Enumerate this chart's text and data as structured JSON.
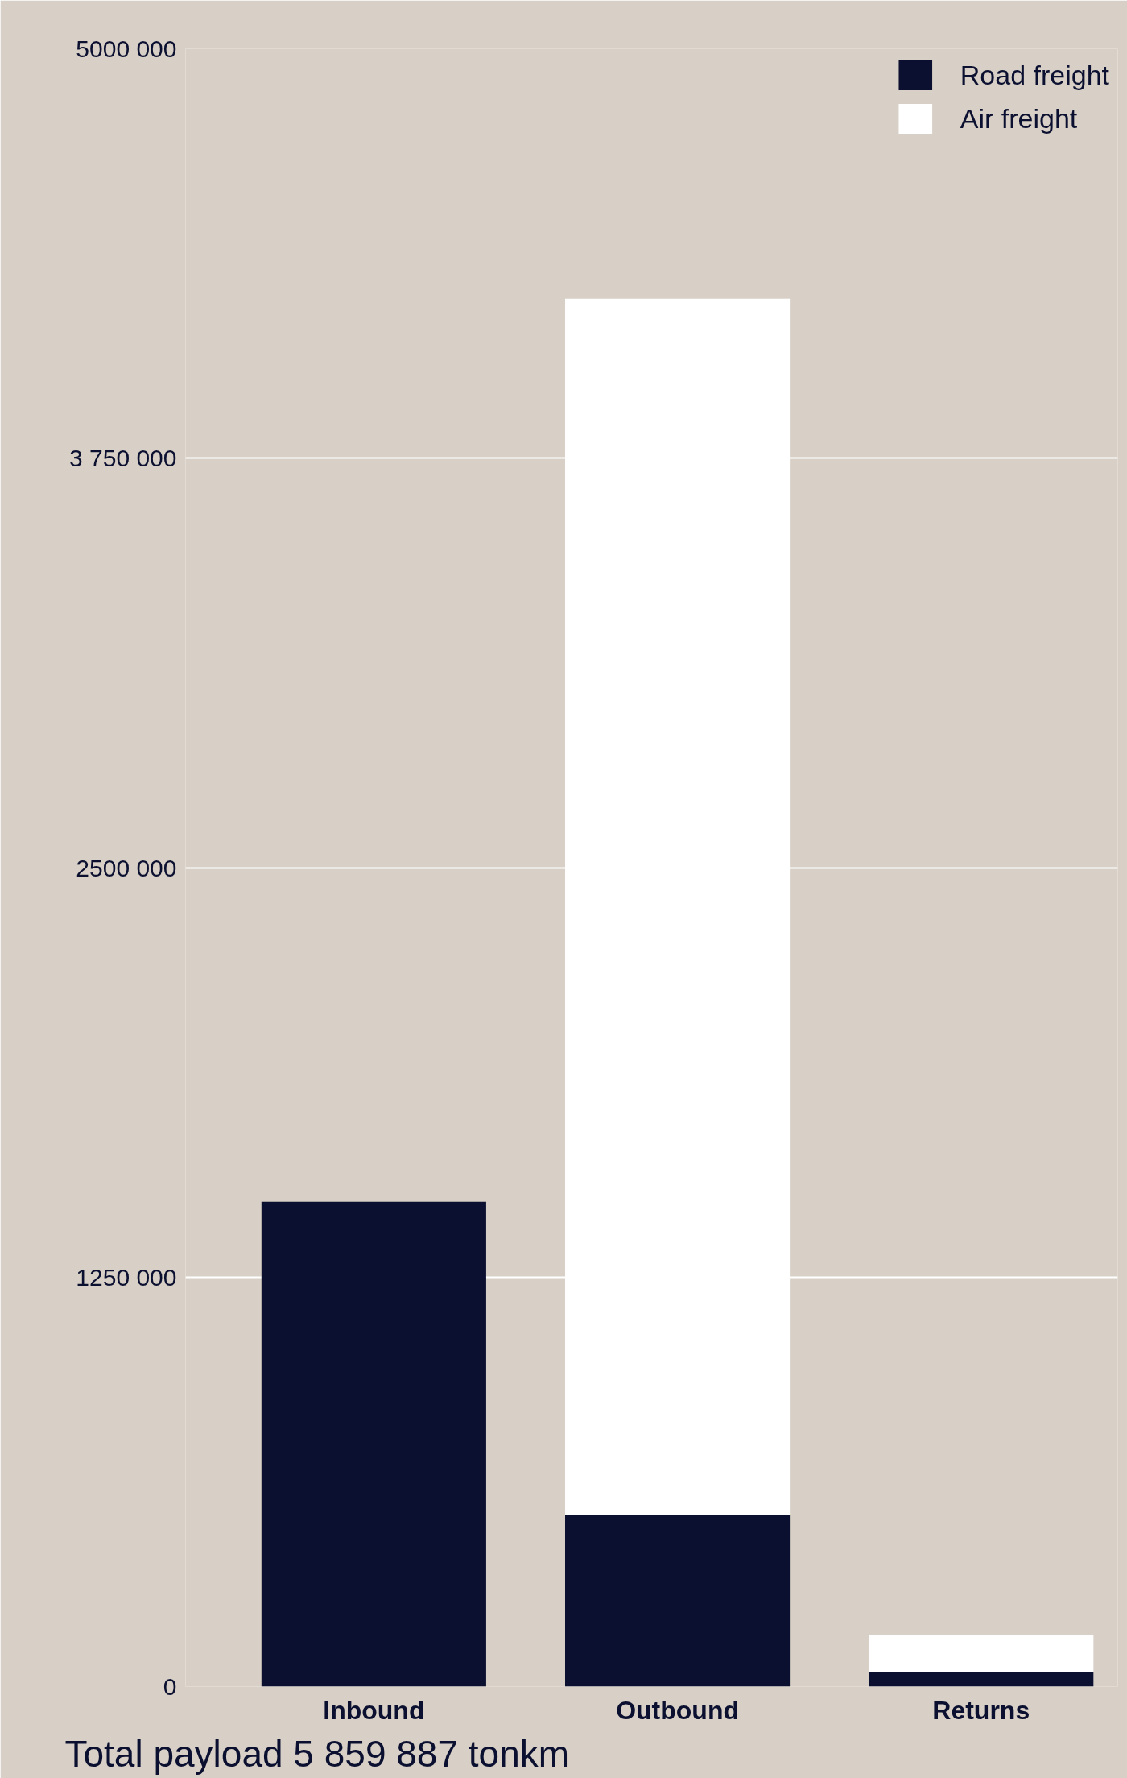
{
  "chart_data": {
    "type": "bar",
    "stacked": true,
    "categories": [
      "Inbound",
      "Outbound",
      "Returns"
    ],
    "series": [
      {
        "name": "Road freight",
        "color": "#0b1030",
        "values": [
          1480000,
          523000,
          44000
        ]
      },
      {
        "name": "Air freight",
        "color": "#ffffff",
        "values": [
          0,
          3714000,
          113000
        ]
      }
    ],
    "ylim": [
      0,
      5000000
    ],
    "yticks": [
      0,
      {
        "value": 1250000,
        "label": "1250 000"
      },
      {
        "value": 2500000,
        "label": "2500 000"
      },
      {
        "value": 3750000,
        "label": "3 750 000"
      },
      {
        "value": 5000000,
        "label": "5000 000"
      }
    ],
    "grid": "y",
    "legend": "top right",
    "annotations": [
      "Total payload 5 859 887 tonkm"
    ]
  }
}
